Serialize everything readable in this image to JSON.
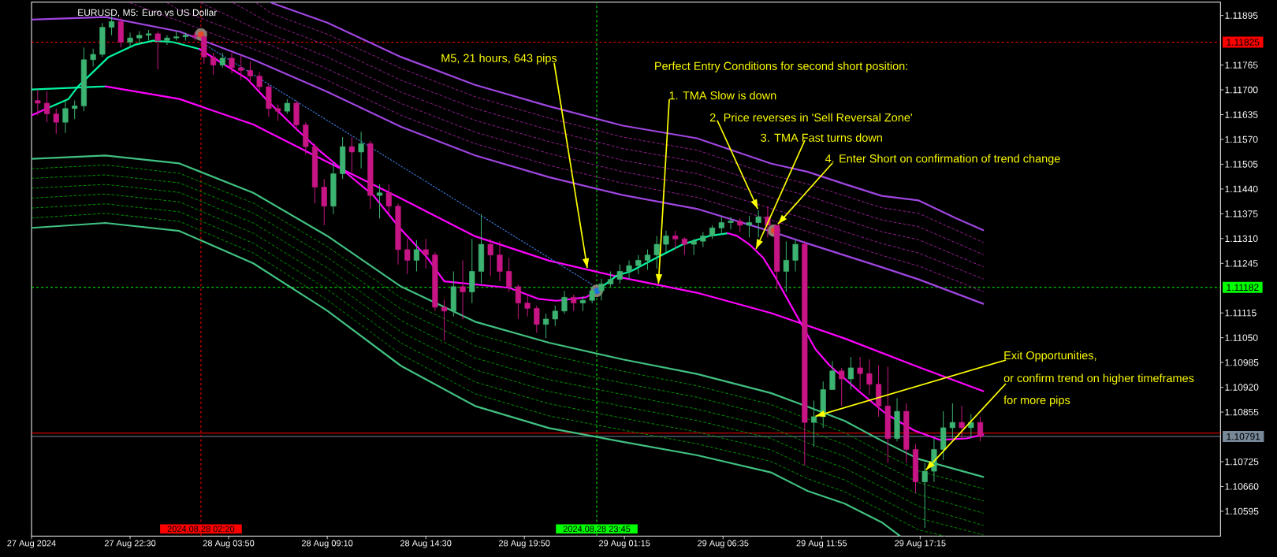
{
  "chart_data": {
    "type": "candlestick",
    "title": "EURUSD, M5: Euro vs US Dollar",
    "x": [
      "2024-08-27T17:30",
      "2024-08-27T18:00",
      "2024-08-27T18:30",
      "2024-08-27T19:00",
      "2024-08-27T19:30",
      "2024-08-27T20:00",
      "2024-08-27T20:30",
      "2024-08-27T21:00",
      "2024-08-27T21:30",
      "2024-08-27T22:00",
      "2024-08-27T22:30",
      "2024-08-27T23:00",
      "2024-08-27T23:30",
      "2024-08-28T00:00",
      "2024-08-28T00:30",
      "2024-08-28T01:00",
      "2024-08-28T01:30",
      "2024-08-28T02:00",
      "2024-08-28T02:30",
      "2024-08-28T03:00",
      "2024-08-28T03:30",
      "2024-08-28T04:00",
      "2024-08-28T04:30",
      "2024-08-28T05:00",
      "2024-08-28T05:30",
      "2024-08-28T06:00",
      "2024-08-28T06:30",
      "2024-08-28T07:00",
      "2024-08-28T07:30",
      "2024-08-28T08:00",
      "2024-08-28T08:30",
      "2024-08-28T09:00",
      "2024-08-28T09:30",
      "2024-08-28T10:00",
      "2024-08-28T10:30",
      "2024-08-28T11:00",
      "2024-08-28T11:30",
      "2024-08-28T12:00",
      "2024-08-28T12:30",
      "2024-08-28T13:00",
      "2024-08-28T13:30",
      "2024-08-28T14:00",
      "2024-08-28T14:30",
      "2024-08-28T15:00",
      "2024-08-28T15:30",
      "2024-08-28T16:00",
      "2024-08-28T16:30",
      "2024-08-28T17:00",
      "2024-08-28T17:30",
      "2024-08-28T18:00",
      "2024-08-28T18:30",
      "2024-08-28T19:00",
      "2024-08-28T19:30",
      "2024-08-28T20:00",
      "2024-08-28T20:30",
      "2024-08-28T21:00",
      "2024-08-28T21:30",
      "2024-08-28T22:00",
      "2024-08-28T22:30",
      "2024-08-28T23:00",
      "2024-08-28T23:30",
      "2024-08-29T00:00",
      "2024-08-29T00:30",
      "2024-08-29T01:00",
      "2024-08-29T01:30",
      "2024-08-29T02:00",
      "2024-08-29T02:30",
      "2024-08-29T03:00",
      "2024-08-29T03:30",
      "2024-08-29T04:00",
      "2024-08-29T04:30",
      "2024-08-29T05:00",
      "2024-08-29T05:30",
      "2024-08-29T06:00",
      "2024-08-29T06:30",
      "2024-08-29T07:00",
      "2024-08-29T07:30",
      "2024-08-29T08:00",
      "2024-08-29T08:30",
      "2024-08-29T09:00",
      "2024-08-29T09:30",
      "2024-08-29T10:00",
      "2024-08-29T10:30",
      "2024-08-29T11:00",
      "2024-08-29T11:30",
      "2024-08-29T12:00",
      "2024-08-29T12:30",
      "2024-08-29T13:00",
      "2024-08-29T13:30",
      "2024-08-29T14:00",
      "2024-08-29T14:30",
      "2024-08-29T15:00",
      "2024-08-29T15:30",
      "2024-08-29T16:00",
      "2024-08-29T16:30",
      "2024-08-29T17:00",
      "2024-08-29T17:30",
      "2024-08-29T18:00",
      "2024-08-29T18:30",
      "2024-08-29T19:00",
      "2024-08-29T19:30",
      "2024-08-29T20:00",
      "2024-08-29T20:30"
    ],
    "ohlc": [
      [
        1.11672,
        1.11701,
        1.11633,
        1.11665
      ],
      [
        1.11665,
        1.11697,
        1.11615,
        1.11637
      ],
      [
        1.11637,
        1.11651,
        1.11585,
        1.11615
      ],
      [
        1.11615,
        1.11672,
        1.11587,
        1.11651
      ],
      [
        1.11651,
        1.11672,
        1.11623,
        1.11658
      ],
      [
        1.11658,
        1.11811,
        1.11644,
        1.11779
      ],
      [
        1.11779,
        1.11808,
        1.11761,
        1.11793
      ],
      [
        1.11793,
        1.11875,
        1.11786,
        1.11864
      ],
      [
        1.11864,
        1.11893,
        1.11843,
        1.11879
      ],
      [
        1.11879,
        1.11889,
        1.11811,
        1.11825
      ],
      [
        1.11825,
        1.1185,
        1.11811,
        1.11836
      ],
      [
        1.11836,
        1.11854,
        1.11822,
        1.11843
      ],
      [
        1.11843,
        1.11857,
        1.11829,
        1.11847
      ],
      [
        1.11847,
        1.11854,
        1.11754,
        1.11829
      ],
      [
        1.11829,
        1.11843,
        1.11818,
        1.11836
      ],
      [
        1.11836,
        1.11854,
        1.11829,
        1.11839
      ],
      [
        1.11839,
        1.1185,
        1.11829,
        1.11843
      ],
      [
        1.11843,
        1.11852,
        1.11829,
        1.11839
      ],
      [
        1.11839,
        1.11843,
        1.11768,
        1.11786
      ],
      [
        1.11786,
        1.11797,
        1.1174,
        1.11765
      ],
      [
        1.11765,
        1.11797,
        1.11758,
        1.11783
      ],
      [
        1.11783,
        1.11797,
        1.11743,
        1.11758
      ],
      [
        1.11758,
        1.1179,
        1.11726,
        1.11751
      ],
      [
        1.11751,
        1.11774,
        1.11715,
        1.11736
      ],
      [
        1.11736,
        1.11747,
        1.11694,
        1.11708
      ],
      [
        1.11708,
        1.11715,
        1.1163,
        1.11651
      ],
      [
        1.11651,
        1.11662,
        1.11619,
        1.11644
      ],
      [
        1.11644,
        1.11676,
        1.11637,
        1.11665
      ],
      [
        1.11665,
        1.11672,
        1.11594,
        1.11608
      ],
      [
        1.11608,
        1.11615,
        1.1153,
        1.11551
      ],
      [
        1.11551,
        1.11559,
        1.11402,
        1.11445
      ],
      [
        1.11445,
        1.11466,
        1.11345,
        1.11395
      ],
      [
        1.11395,
        1.11509,
        1.11374,
        1.1148
      ],
      [
        1.1148,
        1.11576,
        1.11466,
        1.11551
      ],
      [
        1.11551,
        1.11576,
        1.11484,
        1.11537
      ],
      [
        1.11537,
        1.1159,
        1.11494,
        1.11559
      ],
      [
        1.11559,
        1.11566,
        1.11388,
        1.11423
      ],
      [
        1.11423,
        1.11452,
        1.11363,
        1.1143
      ],
      [
        1.1143,
        1.11452,
        1.11374,
        1.11395
      ],
      [
        1.11395,
        1.11402,
        1.11242,
        1.11281
      ],
      [
        1.11281,
        1.11309,
        1.11217,
        1.11253
      ],
      [
        1.11253,
        1.11306,
        1.11224,
        1.11281
      ],
      [
        1.11281,
        1.11309,
        1.11231,
        1.11267
      ],
      [
        1.11267,
        1.11274,
        1.1112,
        1.1113
      ],
      [
        1.1113,
        1.1115,
        1.11042,
        1.1112
      ],
      [
        1.1112,
        1.11224,
        1.11106,
        1.11184
      ],
      [
        1.11184,
        1.11253,
        1.11099,
        1.1117
      ],
      [
        1.1117,
        1.11309,
        1.11141,
        1.11224
      ],
      [
        1.11224,
        1.11374,
        1.11192,
        1.11295
      ],
      [
        1.11295,
        1.11309,
        1.11212,
        1.11267
      ],
      [
        1.11267,
        1.11303,
        1.11198,
        1.11224
      ],
      [
        1.11224,
        1.1126,
        1.1117,
        1.11184
      ],
      [
        1.11184,
        1.1119,
        1.11099,
        1.11141
      ],
      [
        1.11141,
        1.11163,
        1.11106,
        1.11127
      ],
      [
        1.11127,
        1.11134,
        1.11063,
        1.11085
      ],
      [
        1.11085,
        1.11113,
        1.11049,
        1.11099
      ],
      [
        1.11099,
        1.11134,
        1.11081,
        1.1112
      ],
      [
        1.1112,
        1.11173,
        1.11113,
        1.11156
      ],
      [
        1.11156,
        1.11163,
        1.1112,
        1.11141
      ],
      [
        1.11141,
        1.11159,
        1.1112,
        1.11148
      ],
      [
        1.11148,
        1.11184,
        1.11141,
        1.11173
      ],
      [
        1.11173,
        1.11205,
        1.11148,
        1.11191
      ],
      [
        1.11191,
        1.11224,
        1.11184,
        1.11203
      ],
      [
        1.11203,
        1.11242,
        1.11192,
        1.11224
      ],
      [
        1.11224,
        1.11253,
        1.11203,
        1.11239
      ],
      [
        1.11239,
        1.11267,
        1.11217,
        1.11253
      ],
      [
        1.11253,
        1.11281,
        1.11228,
        1.11267
      ],
      [
        1.11267,
        1.11317,
        1.11231,
        1.11295
      ],
      [
        1.11295,
        1.11331,
        1.11274,
        1.11317
      ],
      [
        1.11317,
        1.11331,
        1.11281,
        1.11309
      ],
      [
        1.11309,
        1.11313,
        1.11267,
        1.11295
      ],
      [
        1.11295,
        1.11309,
        1.11267,
        1.11303
      ],
      [
        1.11303,
        1.11327,
        1.11288,
        1.11317
      ],
      [
        1.11317,
        1.11345,
        1.11309,
        1.11338
      ],
      [
        1.11338,
        1.11367,
        1.1132,
        1.11352
      ],
      [
        1.11352,
        1.11367,
        1.11334,
        1.11356
      ],
      [
        1.11356,
        1.11363,
        1.11327,
        1.11345
      ],
      [
        1.11345,
        1.1137,
        1.11313,
        1.11352
      ],
      [
        1.11352,
        1.11384,
        1.11313,
        1.11367
      ],
      [
        1.11367,
        1.11395,
        1.11313,
        1.11345
      ],
      [
        1.11345,
        1.11345,
        1.11177,
        1.11224
      ],
      [
        1.11224,
        1.11303,
        1.1117,
        1.11253
      ],
      [
        1.11253,
        1.11309,
        1.11224,
        1.11295
      ],
      [
        1.11295,
        1.11303,
        1.10715,
        1.10828
      ],
      [
        1.10828,
        1.10885,
        1.10764,
        1.10843
      ],
      [
        1.10843,
        1.10935,
        1.10814,
        1.10914
      ],
      [
        1.10914,
        1.10989,
        1.10914,
        1.10963
      ],
      [
        1.10963,
        1.10971,
        1.10871,
        1.10942
      ],
      [
        1.10942,
        1.11,
        1.10914,
        1.10971
      ],
      [
        1.10971,
        1.11,
        1.10914,
        1.10956
      ],
      [
        1.10956,
        1.10993,
        1.109,
        1.10928
      ],
      [
        1.10928,
        1.10978,
        1.10843,
        1.10871
      ],
      [
        1.10871,
        1.10974,
        1.10722,
        1.10786
      ],
      [
        1.10786,
        1.10892,
        1.10778,
        1.10857
      ],
      [
        1.10857,
        1.10878,
        1.10722,
        1.10757
      ],
      [
        1.10757,
        1.10771,
        1.10643,
        1.10672
      ],
      [
        1.10672,
        1.10722,
        1.10551,
        1.107
      ],
      [
        1.107,
        1.10786,
        1.10672,
        1.10757
      ],
      [
        1.10757,
        1.10857,
        1.10729,
        1.10814
      ],
      [
        1.10814,
        1.10878,
        1.10786,
        1.10828
      ],
      [
        1.10828,
        1.10871,
        1.10786,
        1.10814
      ],
      [
        1.10814,
        1.1085,
        1.10786,
        1.10828
      ],
      [
        1.10828,
        1.10843,
        1.10778,
        1.10791
      ]
    ],
    "colors": [
      "#c71585",
      "#c71585",
      "#c71585",
      "#3cb371",
      "#3cb371",
      "#3cb371",
      "#3cb371",
      "#3cb371",
      "#3cb371",
      "#c71585",
      "#3cb371",
      "#3cb371",
      "#3cb371",
      "#c71585",
      "#3cb371",
      "#3cb371",
      "#3cb371",
      "#c71585",
      "#c71585",
      "#c71585",
      "#3cb371",
      "#c71585",
      "#c71585",
      "#c71585",
      "#c71585",
      "#c71585",
      "#c71585",
      "#3cb371",
      "#c71585",
      "#c71585",
      "#c71585",
      "#c71585",
      "#3cb371",
      "#3cb371",
      "#c71585",
      "#3cb371",
      "#c71585",
      "#3cb371",
      "#c71585",
      "#c71585",
      "#c71585",
      "#3cb371",
      "#c71585",
      "#c71585",
      "#c71585",
      "#3cb371",
      "#c71585",
      "#3cb371",
      "#3cb371",
      "#c71585",
      "#c71585",
      "#c71585",
      "#c71585",
      "#c71585",
      "#c71585",
      "#3cb371",
      "#3cb371",
      "#3cb371",
      "#c71585",
      "#3cb371",
      "#3cb371",
      "#3cb371",
      "#3cb371",
      "#3cb371",
      "#3cb371",
      "#3cb371",
      "#3cb371",
      "#3cb371",
      "#3cb371",
      "#c71585",
      "#c71585",
      "#3cb371",
      "#3cb371",
      "#3cb371",
      "#3cb371",
      "#3cb371",
      "#c71585",
      "#3cb371",
      "#3cb371",
      "#c71585",
      "#c71585",
      "#3cb371",
      "#3cb371",
      "#c71585",
      "#3cb371",
      "#3cb371",
      "#3cb371",
      "#c71585",
      "#3cb371",
      "#c71585",
      "#c71585",
      "#c71585",
      "#c71585",
      "#3cb371",
      "#c71585",
      "#c71585",
      "#3cb371",
      "#3cb371",
      "#3cb371",
      "#3cb371",
      "#c71585",
      "#3cb371",
      "#c71585"
    ],
    "series": [
      {
        "type": "line",
        "color": "#9f45e0",
        "x": [
          "2024-08-28T06:10",
          "2024-08-28T09:10",
          "2024-08-28T13:10",
          "2024-08-28T17:10",
          "2024-08-28T21:10",
          "2024-08-29T01:10",
          "2024-08-29T05:10",
          "2024-08-29T09:10",
          "2024-08-29T11:10",
          "2024-08-29T13:10",
          "2024-08-29T15:10",
          "2024-08-29T17:10",
          "2024-08-29T19:10",
          "2024-08-29T20:40"
        ],
        "values": [
          1.11928,
          1.11876,
          1.11786,
          1.11713,
          1.11657,
          1.11606,
          1.11573,
          1.11507,
          1.11485,
          1.11453,
          1.11422,
          1.1141,
          1.11364,
          1.11332
        ]
      },
      {
        "type": "line",
        "line_style": "dashed",
        "color": "#a0209f",
        "x": [
          "2024-08-28T05:20",
          "2024-08-28T06:10",
          "2024-08-28T09:10",
          "2024-08-28T13:10",
          "2024-08-28T17:10",
          "2024-08-28T21:10",
          "2024-08-29T01:10",
          "2024-08-29T05:10",
          "2024-08-29T09:10",
          "2024-08-29T11:10",
          "2024-08-29T13:10",
          "2024-08-29T15:10",
          "2024-08-29T17:10",
          "2024-08-29T20:40"
        ],
        "values": [
          1.11928,
          1.119,
          1.11846,
          1.11756,
          1.11682,
          1.11626,
          1.11576,
          1.11542,
          1.11477,
          1.11453,
          1.11422,
          1.11391,
          1.11376,
          1.113
        ]
      },
      {
        "type": "line",
        "line_style": "dashed",
        "color": "#a0209f",
        "x": [
          "2024-08-28T04:05",
          "2024-08-28T06:10",
          "2024-08-28T09:10",
          "2024-08-28T13:10",
          "2024-08-28T17:10",
          "2024-08-28T21:10",
          "2024-08-29T01:10",
          "2024-08-29T05:10",
          "2024-08-29T09:10",
          "2024-08-29T11:10",
          "2024-08-29T13:10",
          "2024-08-29T15:10",
          "2024-08-29T17:10",
          "2024-08-29T20:40"
        ],
        "values": [
          1.11928,
          1.11872,
          1.11816,
          1.11725,
          1.11651,
          1.11595,
          1.11546,
          1.11511,
          1.11448,
          1.11422,
          1.1139,
          1.11359,
          1.11341,
          1.11268
        ]
      },
      {
        "type": "line",
        "line_style": "dashed",
        "color": "#a0209f",
        "x": [
          "2024-08-28T02:20",
          "2024-08-28T05:10",
          "2024-08-28T06:10",
          "2024-08-28T09:10",
          "2024-08-28T13:10",
          "2024-08-28T17:10",
          "2024-08-28T21:10",
          "2024-08-29T01:10",
          "2024-08-29T05:10",
          "2024-08-29T09:10",
          "2024-08-29T11:10",
          "2024-08-29T13:10",
          "2024-08-29T15:10",
          "2024-08-29T17:10",
          "2024-08-29T20:40"
        ],
        "values": [
          1.11928,
          1.11863,
          1.11844,
          1.11786,
          1.11694,
          1.1162,
          1.11564,
          1.11515,
          1.1148,
          1.11418,
          1.11391,
          1.11359,
          1.11328,
          1.11307,
          1.11236
        ]
      },
      {
        "type": "line",
        "line_style": "dashed",
        "color": "#a0209f",
        "x": [
          "2024-08-28T00:30",
          "2024-08-28T01:10",
          "2024-08-28T05:10",
          "2024-08-28T06:10",
          "2024-08-28T09:10",
          "2024-08-28T13:10",
          "2024-08-28T17:10",
          "2024-08-28T21:10",
          "2024-08-29T01:10",
          "2024-08-29T05:10",
          "2024-08-29T09:10",
          "2024-08-29T11:10",
          "2024-08-29T13:10",
          "2024-08-29T15:10",
          "2024-08-29T17:10",
          "2024-08-29T20:40"
        ],
        "values": [
          1.11928,
          1.11909,
          1.11835,
          1.11816,
          1.11755,
          1.11664,
          1.11589,
          1.11533,
          1.11485,
          1.11449,
          1.11389,
          1.1136,
          1.11328,
          1.11297,
          1.11272,
          1.11204
        ]
      },
      {
        "type": "line",
        "line_style": "dashed",
        "color": "#a0209f",
        "x": [
          "2024-08-27T22:30",
          "2024-08-28T01:10",
          "2024-08-28T05:10",
          "2024-08-28T06:10",
          "2024-08-28T09:10",
          "2024-08-28T13:10",
          "2024-08-28T17:10",
          "2024-08-28T21:10",
          "2024-08-29T01:10",
          "2024-08-29T05:10",
          "2024-08-29T09:10",
          "2024-08-29T11:10",
          "2024-08-29T13:10",
          "2024-08-29T15:10",
          "2024-08-29T17:10",
          "2024-08-29T20:40"
        ],
        "values": [
          1.11928,
          1.1188,
          1.11807,
          1.11788,
          1.11725,
          1.11633,
          1.11559,
          1.11502,
          1.11455,
          1.11418,
          1.11359,
          1.11328,
          1.11297,
          1.11266,
          1.11238,
          1.11171
        ]
      },
      {
        "type": "line",
        "color": "#9f45e0",
        "x": [
          "2024-08-27T17:10",
          "2024-08-27T21:10",
          "2024-08-28T01:10",
          "2024-08-28T05:10",
          "2024-08-28T09:10",
          "2024-08-28T13:10",
          "2024-08-28T17:10",
          "2024-08-28T21:10",
          "2024-08-29T01:10",
          "2024-08-29T05:10",
          "2024-08-29T09:10",
          "2024-08-29T11:10",
          "2024-08-29T13:10",
          "2024-08-29T15:10",
          "2024-08-29T17:10",
          "2024-08-29T20:40"
        ],
        "values": [
          1.11884,
          1.11891,
          1.11853,
          1.11779,
          1.11695,
          1.11603,
          1.11528,
          1.11471,
          1.11424,
          1.11388,
          1.11329,
          1.11297,
          1.11266,
          1.11235,
          1.11203,
          1.11139
        ]
      },
      {
        "type": "line",
        "color": "#40c080",
        "x": [
          "2024-08-27T17:10",
          "2024-08-27T21:10",
          "2024-08-28T01:10",
          "2024-08-28T05:10",
          "2024-08-28T09:10",
          "2024-08-28T13:10",
          "2024-08-28T17:10",
          "2024-08-28T21:10",
          "2024-08-29T01:10",
          "2024-08-29T05:10",
          "2024-08-29T09:10",
          "2024-08-29T11:10",
          "2024-08-29T13:10",
          "2024-08-29T15:10",
          "2024-08-29T17:10",
          "2024-08-29T20:40"
        ],
        "values": [
          1.11519,
          1.11528,
          1.11507,
          1.1143,
          1.11317,
          1.11184,
          1.11092,
          1.11037,
          1.10993,
          1.10955,
          1.10905,
          1.10869,
          1.10832,
          1.1078,
          1.10732,
          1.10685
        ]
      },
      {
        "type": "line",
        "line_style": "dashed",
        "color": "#00a000",
        "x": [
          "2024-08-27T17:10",
          "2024-08-27T21:10",
          "2024-08-28T01:10",
          "2024-08-28T05:10",
          "2024-08-28T09:10",
          "2024-08-28T13:10",
          "2024-08-28T17:10",
          "2024-08-28T21:10",
          "2024-08-29T01:10",
          "2024-08-29T05:10",
          "2024-08-29T09:10",
          "2024-08-29T11:10",
          "2024-08-29T13:10",
          "2024-08-29T15:10",
          "2024-08-29T17:10",
          "2024-08-29T20:40"
        ],
        "values": [
          1.11493,
          1.11503,
          1.11481,
          1.11403,
          1.11289,
          1.11154,
          1.11061,
          1.11005,
          1.10962,
          1.10924,
          1.10875,
          1.10837,
          1.10801,
          1.10749,
          1.10701,
          1.10654
        ]
      },
      {
        "type": "line",
        "line_style": "dashed",
        "color": "#00a000",
        "x": [
          "2024-08-27T17:10",
          "2024-08-27T21:10",
          "2024-08-28T01:10",
          "2024-08-28T05:10",
          "2024-08-28T09:10",
          "2024-08-28T13:10",
          "2024-08-28T17:10",
          "2024-08-28T21:10",
          "2024-08-29T01:10",
          "2024-08-29T05:10",
          "2024-08-29T09:10",
          "2024-08-29T11:10",
          "2024-08-29T13:10",
          "2024-08-29T15:10",
          "2024-08-29T17:10",
          "2024-08-29T20:40"
        ],
        "values": [
          1.11468,
          1.11477,
          1.11456,
          1.11377,
          1.11261,
          1.11125,
          1.11029,
          1.10972,
          1.10931,
          1.10894,
          1.10845,
          1.10806,
          1.1077,
          1.10719,
          1.1067,
          1.10622
        ]
      },
      {
        "type": "line",
        "line_style": "dashed",
        "color": "#00a000",
        "x": [
          "2024-08-27T17:10",
          "2024-08-27T21:10",
          "2024-08-28T01:10",
          "2024-08-28T05:10",
          "2024-08-28T09:10",
          "2024-08-28T13:10",
          "2024-08-28T17:10",
          "2024-08-28T21:10",
          "2024-08-29T01:10",
          "2024-08-29T05:10",
          "2024-08-29T09:10",
          "2024-08-29T11:10",
          "2024-08-29T13:10",
          "2024-08-29T15:10",
          "2024-08-29T17:10",
          "2024-08-29T20:40"
        ],
        "values": [
          1.11442,
          1.11452,
          1.11431,
          1.11351,
          1.11233,
          1.11095,
          1.10997,
          1.1094,
          1.10901,
          1.10863,
          1.10815,
          1.10774,
          1.10739,
          1.10688,
          1.10639,
          1.1059
        ]
      },
      {
        "type": "line",
        "line_style": "dashed",
        "color": "#00a000",
        "x": [
          "2024-08-27T17:10",
          "2024-08-27T21:10",
          "2024-08-28T01:10",
          "2024-08-28T05:10",
          "2024-08-28T09:10",
          "2024-08-28T13:10",
          "2024-08-28T17:10",
          "2024-08-28T21:10",
          "2024-08-29T01:10",
          "2024-08-29T05:10",
          "2024-08-29T09:10",
          "2024-08-29T11:10",
          "2024-08-29T13:10",
          "2024-08-29T15:10",
          "2024-08-29T17:10",
          "2024-08-29T20:40"
        ],
        "values": [
          1.11416,
          1.11427,
          1.11406,
          1.11324,
          1.11205,
          1.11065,
          1.10966,
          1.10909,
          1.1087,
          1.10833,
          1.10786,
          1.10743,
          1.10708,
          1.10658,
          1.10608,
          1.10558
        ]
      },
      {
        "type": "line",
        "line_style": "dashed",
        "color": "#00a000",
        "x": [
          "2024-08-27T17:10",
          "2024-08-27T21:10",
          "2024-08-28T01:10",
          "2024-08-28T05:10",
          "2024-08-28T09:10",
          "2024-08-28T13:10",
          "2024-08-28T17:10",
          "2024-08-28T21:10",
          "2024-08-29T01:10",
          "2024-08-29T05:10",
          "2024-08-29T09:10",
          "2024-08-29T11:10",
          "2024-08-29T13:10",
          "2024-08-29T15:10",
          "2024-08-29T17:10",
          "2024-08-29T20:40"
        ],
        "values": [
          1.1139,
          1.11401,
          1.1138,
          1.11298,
          1.11177,
          1.11036,
          1.10934,
          1.10877,
          1.10839,
          1.10803,
          1.10756,
          1.10711,
          1.10677,
          1.10627,
          1.10577,
          1.10533
        ]
      },
      {
        "type": "line",
        "line_style": "dashed",
        "color": "#00a000",
        "x": [
          "2024-08-27T17:10",
          "2024-08-27T21:10",
          "2024-08-28T01:10",
          "2024-08-28T05:10",
          "2024-08-28T09:10",
          "2024-08-28T13:10",
          "2024-08-28T17:10",
          "2024-08-28T21:10",
          "2024-08-29T01:10",
          "2024-08-29T05:10",
          "2024-08-29T09:10",
          "2024-08-29T11:10",
          "2024-08-29T13:10",
          "2024-08-29T15:10",
          "2024-08-29T17:10",
          "2024-08-29T18:35"
        ],
        "values": [
          1.11364,
          1.11376,
          1.11355,
          1.11272,
          1.11149,
          1.11006,
          1.10903,
          1.10845,
          1.10808,
          1.10772,
          1.10726,
          1.1068,
          1.10646,
          1.10597,
          1.10546,
          1.1053
        ]
      },
      {
        "type": "line",
        "color": "#40c080",
        "x": [
          "2024-08-27T17:10",
          "2024-08-27T21:10",
          "2024-08-28T01:10",
          "2024-08-28T05:10",
          "2024-08-28T09:10",
          "2024-08-28T13:10",
          "2024-08-28T17:10",
          "2024-08-28T21:10",
          "2024-08-29T01:10",
          "2024-08-29T05:10",
          "2024-08-29T09:10",
          "2024-08-29T11:10",
          "2024-08-29T13:10",
          "2024-08-29T15:10",
          "2024-08-29T16:10"
        ],
        "values": [
          1.11338,
          1.11351,
          1.1133,
          1.11245,
          1.11121,
          1.10976,
          1.10871,
          1.10813,
          1.10777,
          1.10742,
          1.10697,
          1.10648,
          1.10615,
          1.10566,
          1.1053
        ]
      },
      {
        "type": "line",
        "color": "#00f5a0",
        "x": [
          "2024-08-27T17:10",
          "2024-08-27T19:10",
          "2024-08-27T21:10"
        ],
        "values": [
          1.11701,
          1.11705,
          1.11709
        ]
      },
      {
        "type": "line",
        "color": "#ff00ff",
        "x": [
          "2024-08-27T21:10",
          "2024-08-28T01:10",
          "2024-08-28T05:10",
          "2024-08-28T09:10",
          "2024-08-28T13:10",
          "2024-08-28T17:10",
          "2024-08-28T21:10",
          "2024-08-29T01:10",
          "2024-08-29T05:10",
          "2024-08-29T09:10",
          "2024-08-29T13:10",
          "2024-08-29T17:10",
          "2024-08-29T20:40"
        ],
        "values": [
          1.11709,
          1.11676,
          1.11609,
          1.11511,
          1.11415,
          1.11316,
          1.11252,
          1.11207,
          1.11168,
          1.11115,
          1.11048,
          1.10973,
          1.1091
        ]
      },
      {
        "type": "line",
        "color": "#ff00ff",
        "x": [
          "2024-08-27T17:10",
          "2024-08-27T17:40",
          "2024-08-27T18:05"
        ],
        "values": [
          1.11633,
          1.11644,
          1.11653
        ]
      },
      {
        "type": "line",
        "color": "#00f5a0",
        "x": [
          "2024-08-27T18:05",
          "2024-08-27T19:10",
          "2024-08-27T19:40",
          "2024-08-27T21:20",
          "2024-08-27T22:45",
          "2024-08-27T23:45",
          "2024-08-28T00:50",
          "2024-08-28T02:15"
        ],
        "values": [
          1.11653,
          1.11676,
          1.11708,
          1.11786,
          1.11818,
          1.11829,
          1.11825,
          1.11807
        ]
      },
      {
        "type": "line",
        "color": "#ff00ff",
        "x": [
          "2024-08-28T02:15",
          "2024-08-28T04:50",
          "2024-08-28T05:55",
          "2024-08-28T07:25",
          "2024-08-28T08:50",
          "2024-08-28T10:15",
          "2024-08-28T11:40",
          "2024-08-28T13:05",
          "2024-08-28T14:35",
          "2024-08-28T15:30",
          "2024-08-28T19:00",
          "2024-08-28T20:35",
          "2024-08-28T21:35",
          "2024-08-28T23:10",
          "2024-08-28T23:45"
        ],
        "values": [
          1.11807,
          1.11729,
          1.11672,
          1.11601,
          1.11537,
          1.1148,
          1.11423,
          1.11338,
          1.1126,
          1.11198,
          1.11181,
          1.11152,
          1.11147,
          1.11156,
          1.11173
        ]
      },
      {
        "type": "line",
        "color": "#00f5a0",
        "x": [
          "2024-08-28T23:45",
          "2024-08-29T00:50",
          "2024-08-29T01:35",
          "2024-08-29T03:00",
          "2024-08-29T04:25",
          "2024-08-29T05:50",
          "2024-08-29T06:50"
        ],
        "values": [
          1.11173,
          1.11213,
          1.11224,
          1.1126,
          1.11295,
          1.11317,
          1.11324
        ]
      },
      {
        "type": "line",
        "color": "#ff00ff",
        "x": [
          "2024-08-29T06:50",
          "2024-08-29T07:20",
          "2024-08-29T08:00",
          "2024-08-29T08:45",
          "2024-08-29T09:25",
          "2024-08-29T10:45",
          "2024-08-29T11:35",
          "2024-08-29T12:20",
          "2024-08-29T14:00",
          "2024-08-29T15:25",
          "2024-08-29T16:55",
          "2024-08-29T18:20",
          "2024-08-29T19:45",
          "2024-08-29T20:40"
        ],
        "values": [
          1.11324,
          1.11317,
          1.11295,
          1.1126,
          1.11208,
          1.11092,
          1.1102,
          1.10978,
          1.10907,
          1.1085,
          1.10807,
          1.10782,
          1.10786,
          1.10796
        ]
      },
      {
        "type": "line",
        "line_style": "dotted",
        "color": "#3d7de0",
        "x": [
          "2024-08-28T02:20",
          "2024-08-28T23:45"
        ],
        "values": [
          1.11825,
          1.11182
        ]
      },
      {
        "type": "scatter",
        "marker": "circle",
        "color": "#e5482c",
        "x": [
          "2024-08-28T02:20",
          "2024-08-29T09:20"
        ],
        "values": [
          1.11845,
          1.11331
        ]
      },
      {
        "type": "scatter",
        "marker": "circle",
        "color": "#1e73d8",
        "x": [
          "2024-08-28T23:45"
        ],
        "values": [
          1.11173
        ]
      }
    ],
    "xlim": [
      "2024-08-27T17:10",
      "2024-08-30T09:30"
    ],
    "xticks": [
      {
        "value": "2024-08-27T17:10",
        "label": "27 Aug 2024"
      },
      {
        "value": "2024-08-27T22:30",
        "label": "27 Aug 22:30"
      },
      {
        "value": "2024-08-28T03:50",
        "label": "28 Aug 03:50"
      },
      {
        "value": "2024-08-28T09:10",
        "label": "28 Aug 09:10"
      },
      {
        "value": "2024-08-28T14:30",
        "label": "28 Aug 14:30"
      },
      {
        "value": "2024-08-28T19:50",
        "label": "28 Aug 19:50"
      },
      {
        "value": "2024-08-29T01:15",
        "label": "29 Aug 01:15"
      },
      {
        "value": "2024-08-29T06:35",
        "label": "29 Aug 06:35"
      },
      {
        "value": "2024-08-29T11:55",
        "label": "29 Aug 11:55"
      },
      {
        "value": "2024-08-29T17:15",
        "label": "29 Aug 17:15"
      }
    ],
    "ylim": [
      1.1053,
      1.1193
    ],
    "yticks": [
      1.11895,
      1.11765,
      {
        "value": 1.117,
        "label": "1.11700"
      },
      1.11635,
      {
        "value": 1.1157,
        "label": "1.11570"
      },
      1.11505,
      {
        "value": 1.1144,
        "label": "1.11440"
      },
      1.11375,
      {
        "value": 1.1131,
        "label": "1.11310"
      },
      1.11245,
      1.11115,
      {
        "value": 1.1105,
        "label": "1.11050"
      },
      1.10985,
      {
        "value": 1.1092,
        "label": "1.10920"
      },
      1.10855,
      1.10725,
      {
        "value": 1.1066,
        "label": "1.10660"
      },
      1.10595
    ],
    "ref_lines": [
      {
        "axis": "y",
        "value": 1.11825,
        "label": "1.11825",
        "color": "#ff0000",
        "line_style": "dashed"
      },
      {
        "axis": "y",
        "value": 1.11182,
        "label": "1.11182",
        "color": "#00ff00",
        "line_style": "dashed"
      },
      {
        "axis": "y",
        "value": 1.108,
        "color": "#ff0000",
        "line_style": "solid"
      },
      {
        "axis": "y",
        "value": 1.10791,
        "label": "1.10791",
        "color": "#778899",
        "line_style": "solid"
      },
      {
        "axis": "x",
        "value": "2024-08-28T02:20",
        "label": "2024.08.28 02:20",
        "color": "#ff0000",
        "line_style": "dashed"
      },
      {
        "axis": "x",
        "value": "2024-08-28T23:45",
        "label": "2024.08.28 23:45",
        "color": "#00ff00",
        "line_style": "dashed"
      }
    ],
    "annotations": [
      {
        "text": "M5, 21 hours, 643 pips",
        "x": "2024-08-28T23:15",
        "y": 1.11229
      },
      "Perfect Entry Conditions for second short position:",
      {
        "text": "1. TMA Slow is down",
        "x": "2024-08-29T03:05",
        "y": 1.11188
      },
      {
        "text": "2. Price reverses in 'Sell Reversal Zone'",
        "x": "2024-08-29T08:30",
        "y": 1.11384
      },
      {
        "text": "3. TMA Fast turns down",
        "x": "2024-08-29T08:20",
        "y": 1.11279
      },
      {
        "text": "4. Enter Short on confirmation of trend change",
        "x": "2024-08-29T09:30",
        "y": 1.11345
      },
      {
        "text": "Exit Opportunities,",
        "x": "2024-08-29T11:30",
        "y": 1.10843
      },
      {
        "text": "or confirm trend on higher timeframes",
        "x": "2024-08-29T17:30",
        "y": 1.107
      },
      "for more pips"
    ]
  }
}
